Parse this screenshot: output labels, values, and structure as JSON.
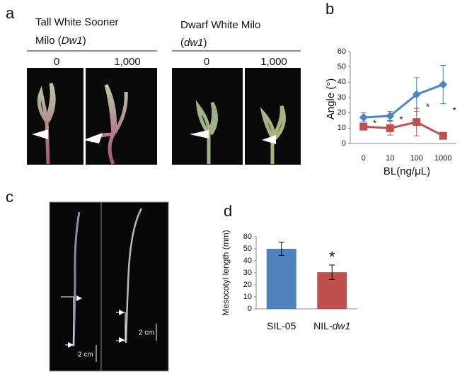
{
  "panel_a": {
    "letter": "a",
    "groups": [
      {
        "line1": "Tall White Sooner",
        "line2_pre": "Milo (",
        "line2_italic": "Dw1",
        "line2_post": ")"
      },
      {
        "line1": "Dwarf White Milo",
        "line2_pre": "(",
        "line2_italic": "dw1",
        "line2_post": ")"
      }
    ],
    "columns": [
      "0",
      "1,000",
      "0",
      "1,000"
    ]
  },
  "panel_b": {
    "letter": "b"
  },
  "panel_c": {
    "letter": "c",
    "scale_labels": [
      "2 cm",
      "2 cm"
    ]
  },
  "panel_d": {
    "letter": "d"
  },
  "chart_data": [
    {
      "type": "line",
      "y_label": "Angle (°)",
      "x_label": "BL(ng/μL)",
      "categories": [
        "0",
        "10",
        "100",
        "1000"
      ],
      "ylim": [
        0,
        60
      ],
      "yticks": [
        0,
        10,
        20,
        30,
        40,
        50,
        60
      ],
      "grid": false,
      "series": [
        {
          "color": "#4a86c8",
          "marker": "diamond",
          "values": [
            17,
            18,
            32,
            38.5
          ],
          "errors": [
            3,
            3,
            11,
            12.5
          ]
        },
        {
          "color": "#c0504d",
          "marker": "square",
          "values": [
            11,
            10,
            14,
            5
          ],
          "errors": [
            2,
            4.5,
            9,
            0
          ]
        }
      ],
      "annotations": [
        "*",
        "*",
        "*",
        "*"
      ]
    },
    {
      "type": "bar",
      "y_label": "Mesocotyl length (mm)",
      "categories": [
        {
          "pre": "SIL-05",
          "italic": ""
        },
        {
          "pre": "NIL-",
          "italic": "dw1"
        }
      ],
      "values": [
        50,
        30.5
      ],
      "errors": [
        5.5,
        6
      ],
      "colors": [
        "#4f81bd",
        "#c0504d"
      ],
      "ylim": [
        0,
        60
      ],
      "yticks": [
        0,
        10,
        20,
        30,
        40,
        50,
        60
      ],
      "grid": false,
      "annotations": [
        "*"
      ]
    }
  ]
}
